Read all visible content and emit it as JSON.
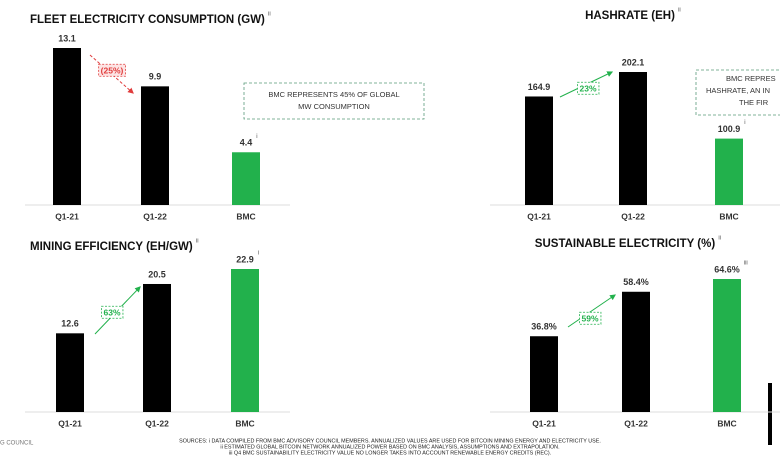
{
  "chart_data": [
    {
      "type": "bar",
      "title": "FLEET ELECTRICITY CONSUMPTION (GW)",
      "title_note": "ii",
      "categories": [
        "Q1-21",
        "Q1-22",
        "BMC"
      ],
      "values": [
        13.1,
        9.9,
        4.4
      ],
      "colors": [
        "#000000",
        "#000000",
        "#22b14c"
      ],
      "value_notes": [
        null,
        null,
        "i"
      ],
      "change_label": "(25%)",
      "change_color": "#e03c3c",
      "callout": [
        "BMC REPRESENTS 45% OF GLOBAL",
        "MW CONSUMPTION"
      ]
    },
    {
      "type": "bar",
      "title": "HASHRATE (EH)",
      "title_note": "ii",
      "categories": [
        "Q1-21",
        "Q1-22",
        "BMC"
      ],
      "values": [
        164.9,
        202.1,
        100.9
      ],
      "colors": [
        "#000000",
        "#000000",
        "#22b14c"
      ],
      "value_notes": [
        null,
        null,
        "i"
      ],
      "change_label": "23%",
      "change_color": "#22b14c",
      "callout": [
        "BMC REPRES",
        "HASHRATE, AN IN",
        "THE FIR"
      ]
    },
    {
      "type": "bar",
      "title": "MINING EFFICIENCY (EH/GW)",
      "title_note": "ii",
      "categories": [
        "Q1-21",
        "Q1-22",
        "BMC"
      ],
      "values": [
        12.6,
        20.5,
        22.9
      ],
      "colors": [
        "#000000",
        "#000000",
        "#22b14c"
      ],
      "value_notes": [
        null,
        null,
        "i"
      ],
      "change_label": "63%",
      "change_color": "#22b14c"
    },
    {
      "type": "bar",
      "title": "SUSTAINABLE ELECTRICITY (%)",
      "title_note": "ii",
      "categories": [
        "Q1-21",
        "Q1-22",
        "BMC"
      ],
      "values": [
        36.8,
        58.4,
        64.6
      ],
      "value_labels": [
        "36.8%",
        "58.4%",
        "64.6%"
      ],
      "colors": [
        "#000000",
        "#000000",
        "#22b14c"
      ],
      "value_notes": [
        null,
        null,
        "iii"
      ],
      "change_label": "59%",
      "change_color": "#22b14c"
    }
  ],
  "footer": {
    "left": "G COUNCIL",
    "lines": [
      "SOURCES: i DATA COMPILED FROM BMC ADVISORY COUNCIL MEMBERS. ANNUALIZED VALUES ARE USED FOR BITCOIN MINING ENERGY AND ELECTRICITY USE.",
      "ii ESTIMATED GLOBAL BITCOIN NETWORK ANNUALIZED POWER BASED ON BMC ANALYSIS, ASSUMPTIONS AND EXTRAPOLATION.",
      "iii Q4 BMC SUSTAINABILITY ELECTRICITY VALUE NO LONGER TAKES INTO ACCOUNT RENEWABLE ENERGY CREDITS (REC)."
    ]
  }
}
